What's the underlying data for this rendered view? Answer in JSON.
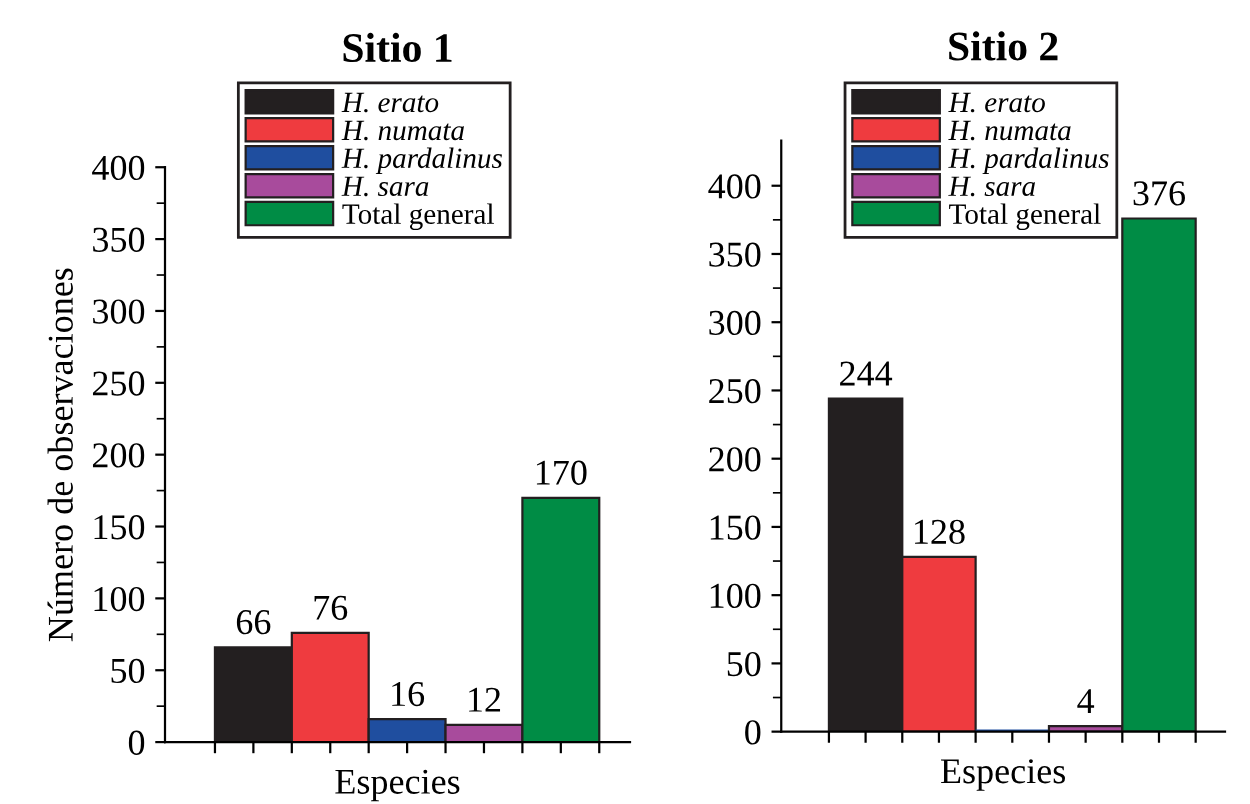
{
  "chart_data": [
    {
      "type": "bar",
      "title": "Sitio 1",
      "xlabel": "Especies",
      "ylabel": "Número de observaciones",
      "categories": [
        null
      ],
      "ylim": [
        0,
        400
      ],
      "yticks": [
        0,
        50,
        100,
        150,
        200,
        250,
        300,
        350,
        400
      ],
      "legend": "top",
      "grid": false,
      "series": [
        {
          "name": "H. erato",
          "color": "#231f20",
          "values": [
            66
          ],
          "value_labels": [
            "66"
          ]
        },
        {
          "name": "H. numata",
          "color": "#ef3b3f",
          "values": [
            76
          ],
          "value_labels": [
            "76"
          ]
        },
        {
          "name": "H. pardalinus",
          "color": "#1f4e9f",
          "values": [
            16
          ],
          "value_labels": [
            "16"
          ]
        },
        {
          "name": "H. sara",
          "color": "#a84b9c",
          "values": [
            12
          ],
          "value_labels": [
            "12"
          ]
        },
        {
          "name": "Total general",
          "color": "#008c45",
          "values": [
            170
          ],
          "value_labels": [
            "170"
          ]
        }
      ]
    },
    {
      "type": "bar",
      "title": "Sitio 2",
      "xlabel": "Especies",
      "categories": [
        null
      ],
      "ylim": [
        0,
        433
      ],
      "yticks": [
        0,
        50,
        100,
        150,
        200,
        250,
        300,
        350,
        400
      ],
      "legend": "top",
      "grid": false,
      "series": [
        {
          "name": "H. erato",
          "color": "#231f20",
          "values": [
            244
          ],
          "value_labels": [
            "244"
          ]
        },
        {
          "name": "H. numata",
          "color": "#ef3b3f",
          "values": [
            128
          ],
          "value_labels": [
            "128"
          ]
        },
        {
          "name": "H. pardalinus",
          "color": "#1f4e9f",
          "values": [
            0
          ],
          "value_labels": [
            null
          ]
        },
        {
          "name": "H. sara",
          "color": "#a84b9c",
          "values": [
            4
          ],
          "value_labels": [
            "4"
          ]
        },
        {
          "name": "Total general",
          "color": "#008c45",
          "values": [
            376
          ],
          "value_labels": [
            "376"
          ]
        }
      ]
    }
  ]
}
